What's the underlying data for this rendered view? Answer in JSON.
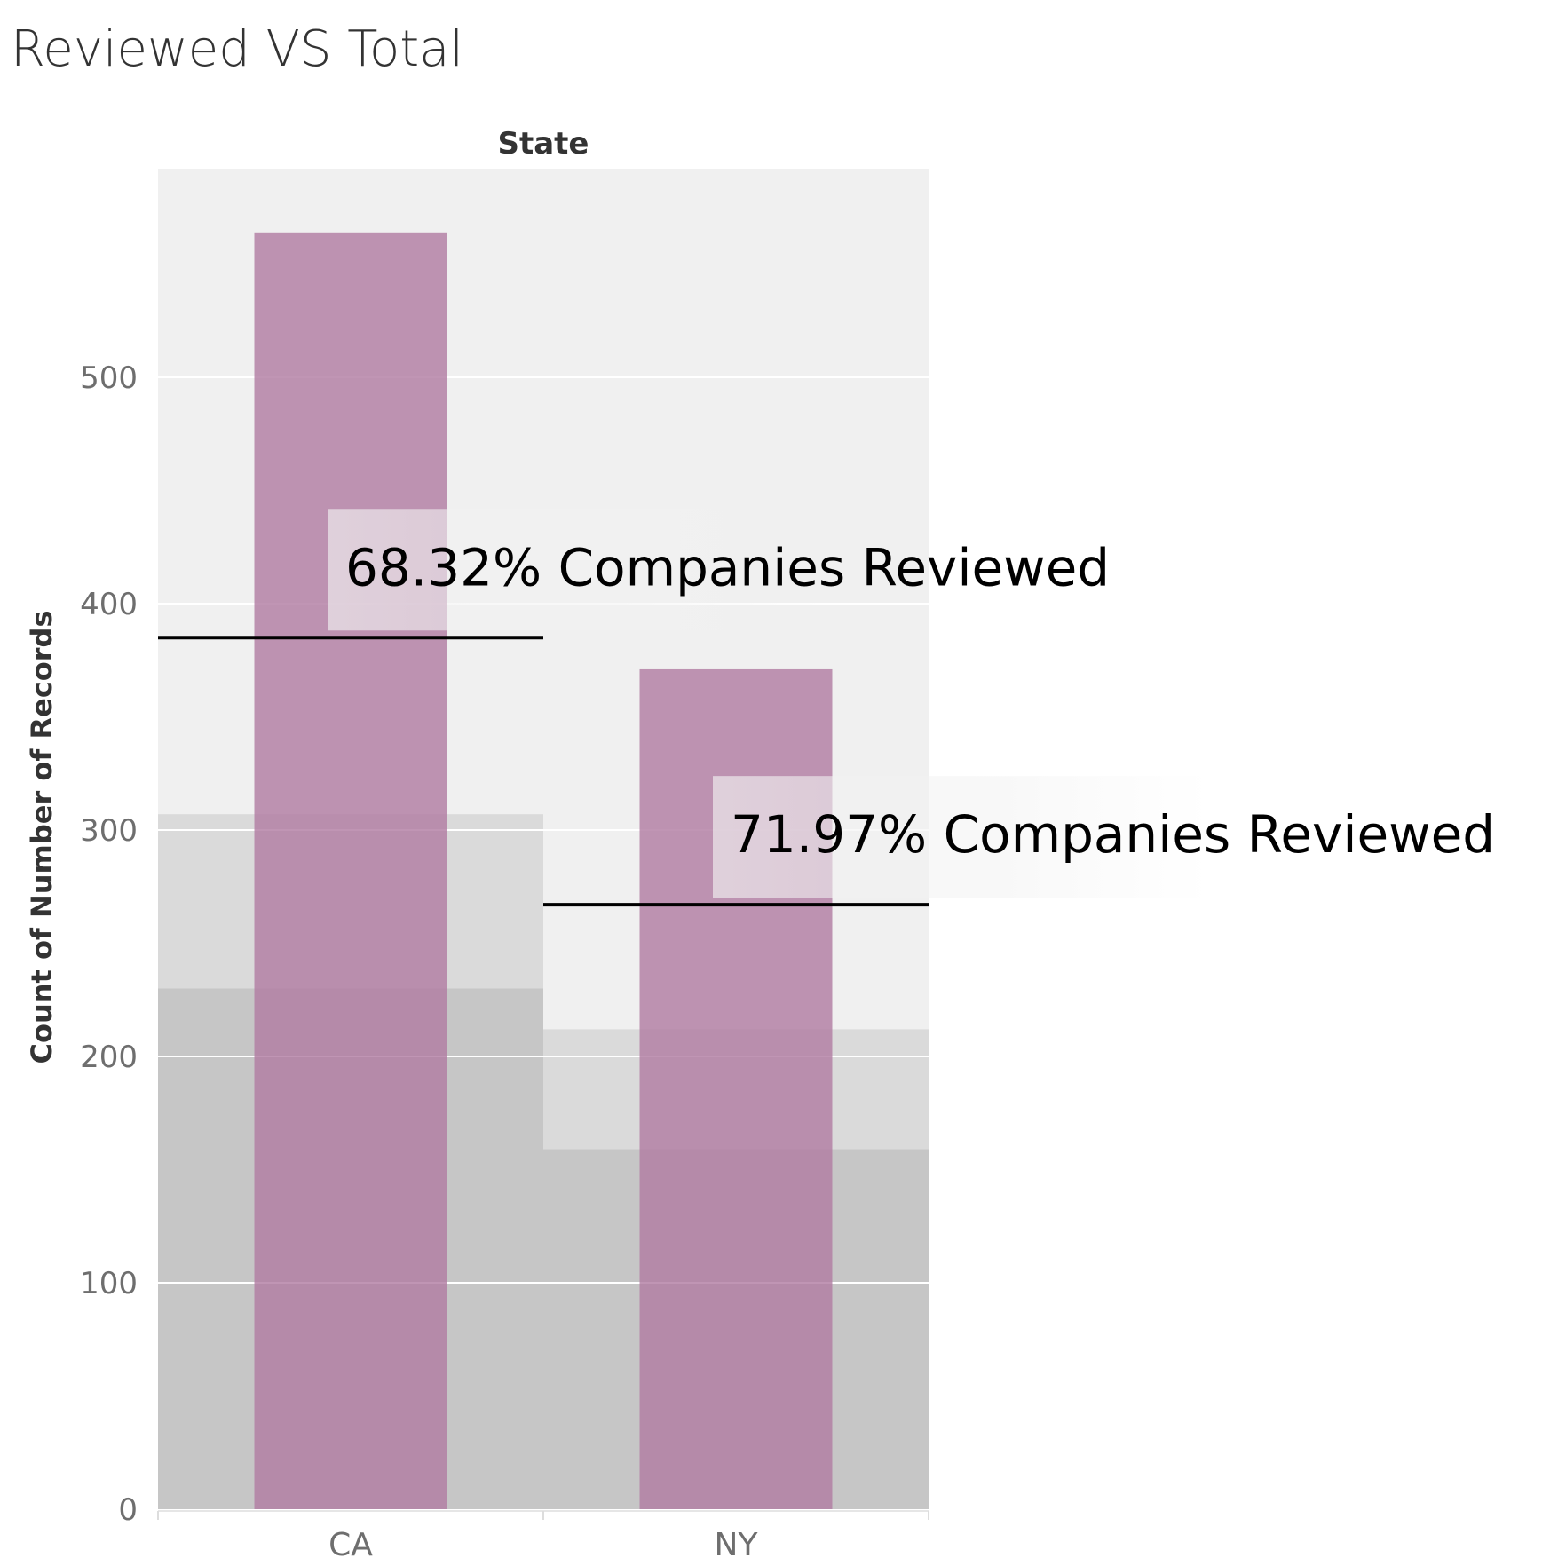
{
  "chart_data": {
    "type": "bar",
    "title": "Reviewed VS Total",
    "column_header": "State",
    "xlabel": "",
    "ylabel": "Count of Number of Records",
    "ylim": [
      0,
      580
    ],
    "yticks": [
      0,
      100,
      200,
      300,
      400,
      500
    ],
    "grid": true,
    "categories": [
      "CA",
      "NY"
    ],
    "series": [
      {
        "values": [
          564,
          371
        ]
      }
    ],
    "reference_lines": [
      {
        "category": "CA",
        "value": 385
      },
      {
        "category": "NY",
        "value": 267
      }
    ],
    "bands": [
      {
        "category": "CA",
        "inner": [
          0,
          230
        ],
        "outer": [
          0,
          307
        ]
      },
      {
        "category": "NY",
        "inner": [
          0,
          159
        ],
        "outer": [
          0,
          212
        ]
      }
    ],
    "annotations": [
      {
        "category": "CA",
        "text": "68.32% Companies Reviewed"
      },
      {
        "category": "NY",
        "text": "71.97% Companies Reviewed"
      }
    ],
    "colors": {
      "bar": "#b07aa1",
      "reference_line": "#000000",
      "band_inner": "#c6c6c6",
      "band_outer": "#dadada",
      "plot_background": "#f0f0f0",
      "gridline": "#ffffff",
      "tick_label": "#6e6e6e",
      "axis_title": "#333333"
    }
  }
}
